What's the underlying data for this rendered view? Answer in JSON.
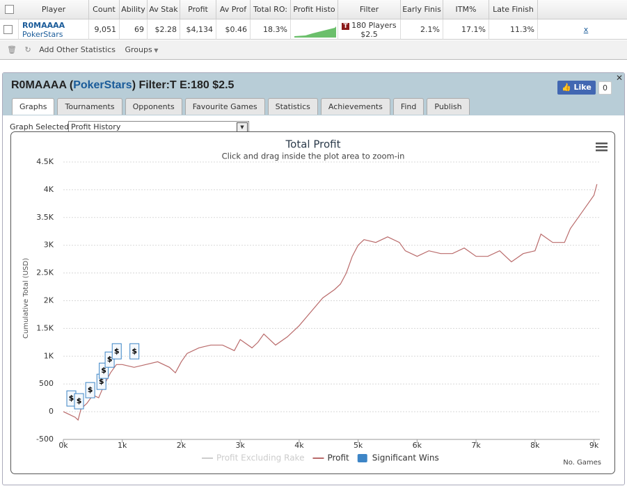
{
  "table": {
    "headers": [
      "Player",
      "Count",
      "Ability",
      "Av Stak",
      "Profit",
      "Av Prof",
      "Total RO:",
      "Profit Histo",
      "Filter",
      "Early Finis",
      "ITM%",
      "Late Finish"
    ],
    "row": {
      "player": "R0MAAAA",
      "site": "PokerStars",
      "count": "9,051",
      "ability": "69",
      "av_stake": "$2.28",
      "profit": "$4,134",
      "av_profit": "$0.46",
      "total_roi": "18.3%",
      "filter_icon": "T",
      "filter": "180 Players",
      "filter_stake": "$2.5",
      "early_finish": "2.1%",
      "itm": "17.1%",
      "late_finish": "11.3%",
      "remove": "x"
    }
  },
  "toolbar": {
    "add_stats": "Add Other Statistics",
    "groups": "Groups"
  },
  "panel": {
    "title_player": "R0MAAAA (",
    "title_site": "PokerStars",
    "title_filter": ") Filter:T E:180 $2.5",
    "like": "Like",
    "like_count": "0",
    "tabs": [
      "Graphs",
      "Tournaments",
      "Opponents",
      "Favourite Games",
      "Statistics",
      "Achievements",
      "Find",
      "Publish"
    ],
    "graph_selected_label": "Graph Selected:",
    "graph_selected": "Profit History"
  },
  "chart_data": {
    "type": "line",
    "title": "Total Profit",
    "subtitle": "Click and drag inside the plot area to zoom-in",
    "y_label": "Cumulative Total (USD)",
    "x_label": "No. Games",
    "grid": true,
    "xlim": [
      0,
      9100
    ],
    "xticks": [
      {
        "value": 0,
        "label": "0k"
      },
      {
        "value": 1000,
        "label": "1k"
      },
      {
        "value": 2000,
        "label": "2k"
      },
      {
        "value": 3000,
        "label": "3k"
      },
      {
        "value": 4000,
        "label": "4k"
      },
      {
        "value": 5000,
        "label": "5k"
      },
      {
        "value": 6000,
        "label": "6k"
      },
      {
        "value": 7000,
        "label": "7k"
      },
      {
        "value": 8000,
        "label": "8k"
      },
      {
        "value": 9000,
        "label": "9k"
      }
    ],
    "ylim": [
      -500,
      4500
    ],
    "yticks": [
      -500,
      0,
      500,
      {
        "value": 1000,
        "label": "1K"
      },
      {
        "value": 1500,
        "label": "1.5K"
      },
      {
        "value": 2000,
        "label": "2K"
      },
      {
        "value": 2500,
        "label": "2.5K"
      },
      {
        "value": 3000,
        "label": "3K"
      },
      {
        "value": 3500,
        "label": "3.5K"
      },
      {
        "value": 4000,
        "label": "4K"
      },
      {
        "value": 4500,
        "label": "4.5K"
      }
    ],
    "x": [
      0,
      100,
      200,
      250,
      300,
      400,
      500,
      600,
      700,
      800,
      900,
      1000,
      1200,
      1400,
      1600,
      1800,
      1900,
      2000,
      2100,
      2300,
      2500,
      2700,
      2900,
      3000,
      3200,
      3300,
      3400,
      3600,
      3800,
      4000,
      4200,
      4400,
      4600,
      4700,
      4800,
      4900,
      5000,
      5100,
      5300,
      5500,
      5700,
      5800,
      6000,
      6200,
      6400,
      6600,
      6800,
      7000,
      7200,
      7400,
      7600,
      7800,
      8000,
      8100,
      8300,
      8500,
      8600,
      8800,
      9000,
      9051
    ],
    "series": [
      {
        "name": "Profit Excluding Rake",
        "color": "#cccccc",
        "hidden": true
      },
      {
        "name": "Profit",
        "color": "#b96a6a",
        "values": [
          0,
          -50,
          -100,
          -150,
          50,
          150,
          300,
          250,
          500,
          700,
          850,
          850,
          800,
          850,
          900,
          800,
          700,
          900,
          1050,
          1150,
          1200,
          1200,
          1100,
          1300,
          1150,
          1250,
          1400,
          1200,
          1350,
          1550,
          1800,
          2050,
          2200,
          2300,
          2500,
          2800,
          3000,
          3100,
          3050,
          3150,
          3050,
          2900,
          2800,
          2900,
          2850,
          2850,
          2950,
          2800,
          2800,
          2900,
          2700,
          2850,
          2900,
          3200,
          3050,
          3050,
          3300,
          3600,
          3900,
          4100
        ]
      },
      {
        "name": "Significant Wins",
        "color": "#3d85c6",
        "kind": "flags",
        "flag_label": "$",
        "x": [
          130,
          260,
          450,
          640,
          680,
          780,
          900,
          1200
        ],
        "values": [
          0,
          -50,
          150,
          300,
          500,
          700,
          850,
          850
        ]
      }
    ]
  }
}
